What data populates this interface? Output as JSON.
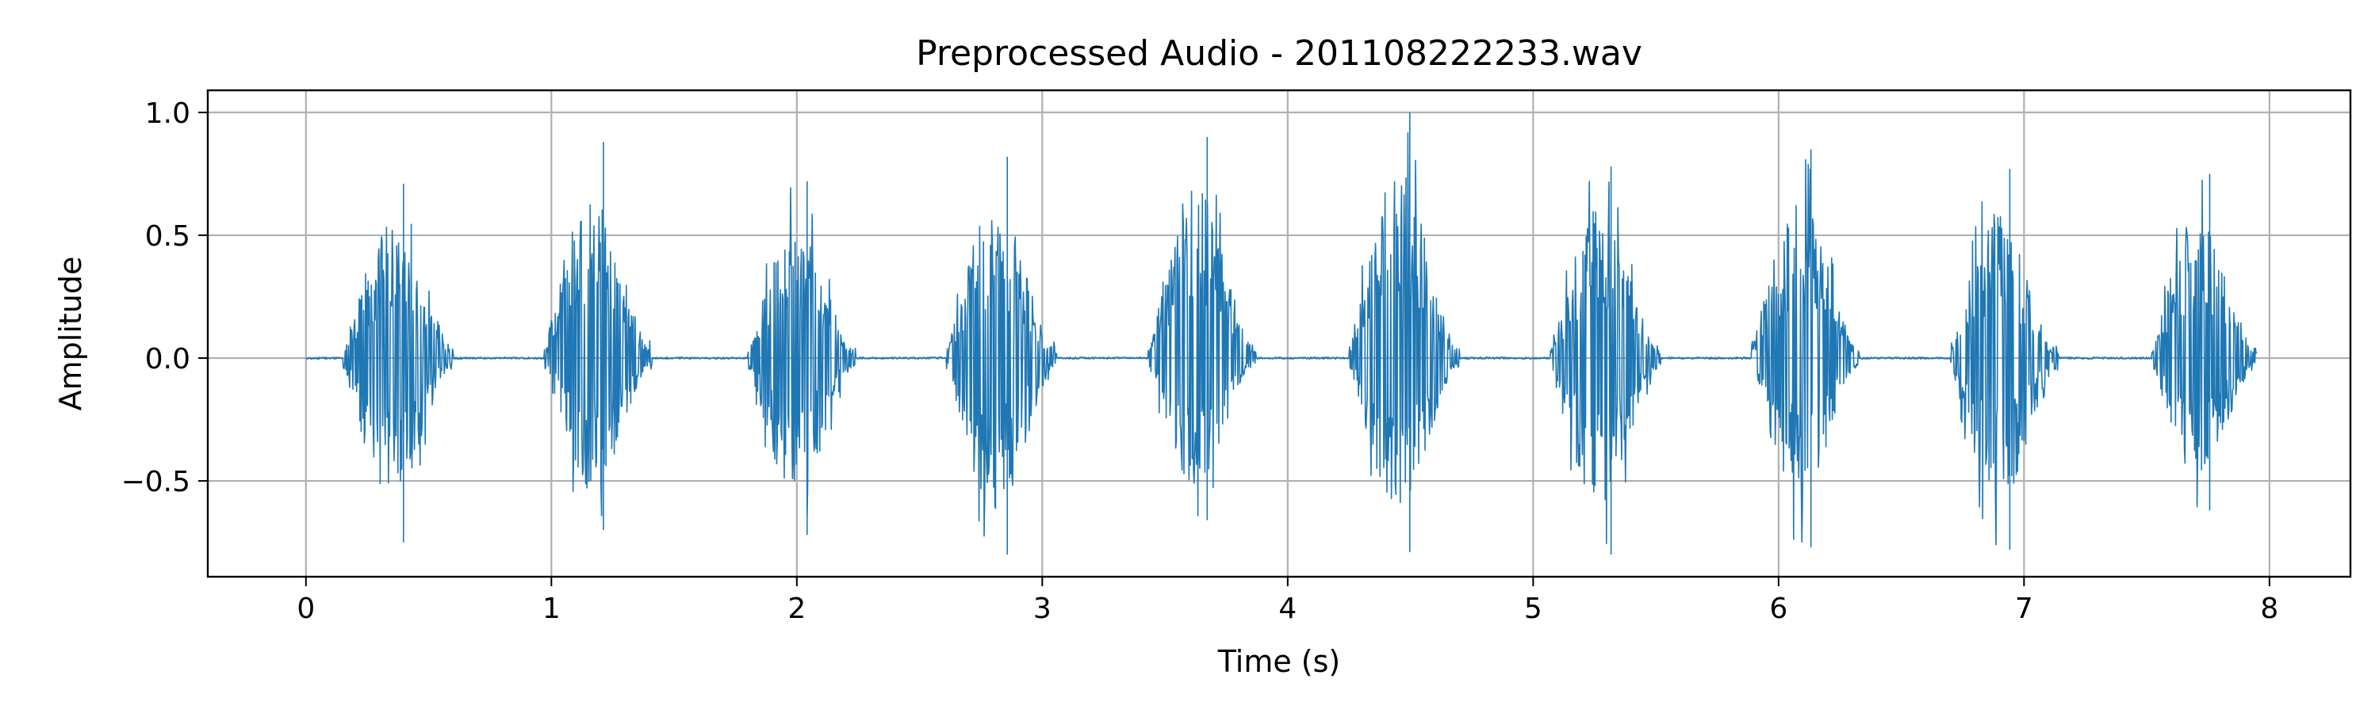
{
  "chart_data": {
    "type": "line",
    "title": "Preprocessed Audio - 201108222233.wav",
    "xlabel": "Time (s)",
    "ylabel": "Amplitude",
    "xlim": [
      -0.4,
      8.33
    ],
    "ylim": [
      -0.89,
      1.09
    ],
    "grid": true,
    "legend": "none",
    "line_color": "#1f77b4",
    "x_ticks": [
      0,
      1,
      2,
      3,
      4,
      5,
      6,
      7,
      8
    ],
    "x_tick_labels": [
      "0",
      "1",
      "2",
      "3",
      "4",
      "5",
      "6",
      "7",
      "8"
    ],
    "y_ticks": [
      1.0,
      0.5,
      0.0,
      -0.5
    ],
    "y_tick_labels": [
      "1.0",
      "0.5",
      "0.0",
      "−0.5"
    ],
    "series": [
      {
        "duration": 7.95,
        "noise_floor": 0.004,
        "bursts": [
          {
            "start": 0.15,
            "end": 0.6,
            "max": 0.71,
            "min": -0.75
          },
          {
            "start": 0.97,
            "end": 1.41,
            "max": 0.88,
            "min": -0.7
          },
          {
            "start": 1.8,
            "end": 2.24,
            "max": 0.72,
            "min": -0.72
          },
          {
            "start": 2.61,
            "end": 3.06,
            "max": 0.82,
            "min": -0.8
          },
          {
            "start": 3.43,
            "end": 3.87,
            "max": 0.9,
            "min": -0.66
          },
          {
            "start": 4.25,
            "end": 4.7,
            "max": 1.0,
            "min": -0.79
          },
          {
            "start": 5.07,
            "end": 5.52,
            "max": 0.78,
            "min": -0.8
          },
          {
            "start": 5.89,
            "end": 6.33,
            "max": 0.85,
            "min": -0.77
          },
          {
            "start": 6.7,
            "end": 7.14,
            "max": 0.77,
            "min": -0.78
          },
          {
            "start": 7.52,
            "end": 7.95,
            "max": 0.75,
            "min": -0.62
          }
        ]
      }
    ]
  }
}
